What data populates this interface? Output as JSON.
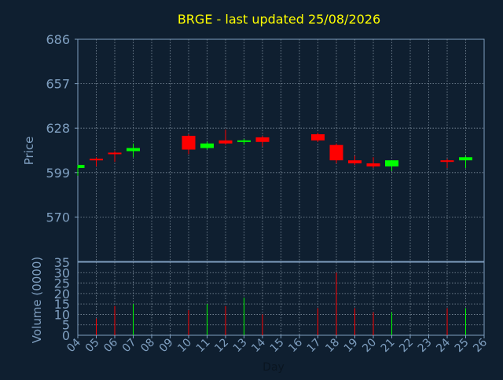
{
  "chart_data": {
    "type": "candlestick",
    "title": "BRGE - last updated 25/08/2026",
    "ylabel": "Price",
    "volume_ylabel": "Volume (0000)",
    "xlabel": "Day",
    "grid": true,
    "price_ylim": [
      541,
      686
    ],
    "price_ticks": [
      686,
      657,
      628,
      599,
      570
    ],
    "volume_ylim": [
      0,
      35
    ],
    "volume_ticks": [
      35,
      30,
      25,
      20,
      15,
      10,
      5,
      0
    ],
    "x_tick_labels": [
      "04",
      "05",
      "06",
      "07",
      "08",
      "09",
      "10",
      "11",
      "12",
      "13",
      "14",
      "15",
      "16",
      "17",
      "18",
      "19",
      "20",
      "21",
      "22",
      "23",
      "24",
      "25",
      "26"
    ],
    "candles": [
      {
        "day": "04",
        "open": 602,
        "high": 604,
        "low": 597,
        "close": 604
      },
      {
        "day": "05",
        "open": 608,
        "high": 609,
        "low": 603,
        "close": 607
      },
      {
        "day": "06",
        "open": 612,
        "high": 613,
        "low": 606,
        "close": 611
      },
      {
        "day": "07",
        "open": 613,
        "high": 618,
        "low": 609,
        "close": 615
      },
      {
        "day": "10",
        "open": 623,
        "high": 624,
        "low": 611,
        "close": 614
      },
      {
        "day": "11",
        "open": 615,
        "high": 619,
        "low": 614,
        "close": 618
      },
      {
        "day": "12",
        "open": 620,
        "high": 627,
        "low": 617,
        "close": 618
      },
      {
        "day": "13",
        "open": 619,
        "high": 621,
        "low": 617,
        "close": 620
      },
      {
        "day": "14",
        "open": 622,
        "high": 623,
        "low": 616,
        "close": 619
      },
      {
        "day": "17",
        "open": 624,
        "high": 625,
        "low": 619,
        "close": 620
      },
      {
        "day": "18",
        "open": 617,
        "high": 618,
        "low": 605,
        "close": 607
      },
      {
        "day": "19",
        "open": 607,
        "high": 610,
        "low": 604,
        "close": 605
      },
      {
        "day": "20",
        "open": 605,
        "high": 609,
        "low": 602,
        "close": 603
      },
      {
        "day": "21",
        "open": 603,
        "high": 607,
        "low": 600,
        "close": 607
      },
      {
        "day": "24",
        "open": 607,
        "high": 608,
        "low": 602,
        "close": 606
      },
      {
        "day": "25",
        "open": 607,
        "high": 610,
        "low": 602,
        "close": 609
      }
    ],
    "volume": [
      {
        "day": "04",
        "value": 0
      },
      {
        "day": "05",
        "value": 8
      },
      {
        "day": "06",
        "value": 14
      },
      {
        "day": "07",
        "value": 15
      },
      {
        "day": "10",
        "value": 12
      },
      {
        "day": "11",
        "value": 15
      },
      {
        "day": "12",
        "value": 14
      },
      {
        "day": "13",
        "value": 18
      },
      {
        "day": "14",
        "value": 10
      },
      {
        "day": "17",
        "value": 13
      },
      {
        "day": "18",
        "value": 30
      },
      {
        "day": "19",
        "value": 13
      },
      {
        "day": "20",
        "value": 11
      },
      {
        "day": "21",
        "value": 11
      },
      {
        "day": "24",
        "value": 13
      },
      {
        "day": "25",
        "value": 13
      }
    ],
    "colors": {
      "background": "#0f1f30",
      "plot_background": "#0f1f30",
      "up": "#00ff00",
      "down": "#ff0000",
      "title": "#ffff00",
      "axis_text": "#7f9fc0",
      "grid": "#8090a0"
    }
  }
}
